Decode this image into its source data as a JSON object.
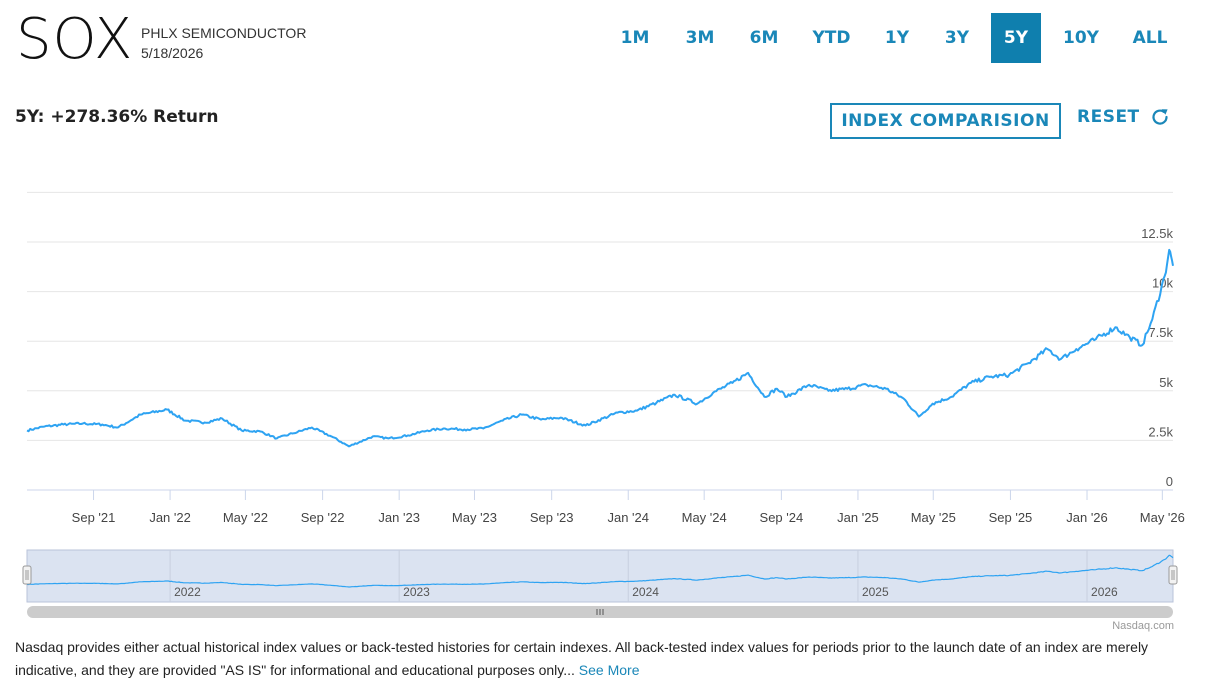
{
  "header": {
    "symbol": "SOX",
    "name": "PHLX SEMICONDUCTOR",
    "date": "5/18/2026"
  },
  "ranges": {
    "items": [
      "1M",
      "3M",
      "6M",
      "YTD",
      "1Y",
      "3Y",
      "5Y",
      "10Y",
      "ALL"
    ],
    "active": "5Y"
  },
  "summary": {
    "return_text": "5Y: +278.36% Return"
  },
  "controls": {
    "compare_label": "INDEX COMPARISION",
    "reset_label": "RESET"
  },
  "colors": {
    "accent": "#1a87b8",
    "line": "#2ea3f2",
    "navigator_fill": "#dbe3f1"
  },
  "chart_data": {
    "type": "line",
    "title": "",
    "xlabel": "",
    "ylabel": "",
    "ylim": [
      0,
      15000
    ],
    "y_ticks": [
      0,
      2500,
      5000,
      7500,
      10000,
      12500
    ],
    "y_tick_labels": [
      "0",
      "2.5k",
      "5k",
      "7.5k",
      "10k",
      "12.5k"
    ],
    "x_tick_labels": [
      "Sep '21",
      "Jan '22",
      "May '22",
      "Sep '22",
      "Jan '23",
      "May '23",
      "Sep '23",
      "Jan '24",
      "May '24",
      "Sep '24",
      "Jan '25",
      "May '25",
      "Sep '25",
      "Jan '26",
      "May '26"
    ],
    "x_tick_dates": [
      "2021-09-01",
      "2022-01-01",
      "2022-05-01",
      "2022-09-01",
      "2023-01-01",
      "2023-05-01",
      "2023-09-01",
      "2024-01-01",
      "2024-05-01",
      "2024-09-01",
      "2025-01-01",
      "2025-05-01",
      "2025-09-01",
      "2026-01-01",
      "2026-05-01"
    ],
    "grid": true,
    "series": [
      {
        "values": [
          [
            "2021-05-18",
            3000
          ],
          [
            "2021-06-15",
            3200
          ],
          [
            "2021-07-15",
            3300
          ],
          [
            "2021-08-15",
            3350
          ],
          [
            "2021-09-15",
            3300
          ],
          [
            "2021-10-10",
            3150
          ],
          [
            "2021-11-15",
            3800
          ],
          [
            "2021-12-27",
            4050
          ],
          [
            "2022-01-25",
            3500
          ],
          [
            "2022-02-25",
            3400
          ],
          [
            "2022-03-25",
            3600
          ],
          [
            "2022-04-25",
            3000
          ],
          [
            "2022-05-25",
            2950
          ],
          [
            "2022-06-20",
            2600
          ],
          [
            "2022-07-15",
            2850
          ],
          [
            "2022-08-15",
            3150
          ],
          [
            "2022-09-15",
            2700
          ],
          [
            "2022-10-13",
            2200
          ],
          [
            "2022-11-20",
            2700
          ],
          [
            "2022-12-15",
            2600
          ],
          [
            "2023-01-15",
            2750
          ],
          [
            "2023-02-15",
            3000
          ],
          [
            "2023-03-15",
            3100
          ],
          [
            "2023-04-15",
            3050
          ],
          [
            "2023-05-15",
            3100
          ],
          [
            "2023-06-15",
            3500
          ],
          [
            "2023-07-15",
            3800
          ],
          [
            "2023-08-15",
            3550
          ],
          [
            "2023-09-15",
            3650
          ],
          [
            "2023-10-25",
            3250
          ],
          [
            "2023-12-15",
            3900
          ],
          [
            "2024-01-15",
            4000
          ],
          [
            "2024-02-15",
            4400
          ],
          [
            "2024-03-15",
            4800
          ],
          [
            "2024-04-20",
            4350
          ],
          [
            "2024-05-15",
            4900
          ],
          [
            "2024-06-15",
            5400
          ],
          [
            "2024-07-10",
            5900
          ],
          [
            "2024-08-05",
            4700
          ],
          [
            "2024-08-25",
            5100
          ],
          [
            "2024-09-10",
            4700
          ],
          [
            "2024-10-15",
            5300
          ],
          [
            "2024-11-15",
            5000
          ],
          [
            "2024-12-15",
            5100
          ],
          [
            "2025-01-15",
            5300
          ],
          [
            "2025-02-15",
            5100
          ],
          [
            "2025-03-15",
            4600
          ],
          [
            "2025-04-08",
            3700
          ],
          [
            "2025-04-30",
            4350
          ],
          [
            "2025-05-30",
            4700
          ],
          [
            "2025-06-30",
            5400
          ],
          [
            "2025-07-30",
            5700
          ],
          [
            "2025-08-30",
            5800
          ],
          [
            "2025-09-30",
            6400
          ],
          [
            "2025-10-30",
            7100
          ],
          [
            "2025-11-20",
            6600
          ],
          [
            "2025-12-15",
            7100
          ],
          [
            "2026-01-15",
            7600
          ],
          [
            "2026-02-15",
            8200
          ],
          [
            "2026-03-10",
            7700
          ],
          [
            "2026-03-30",
            7300
          ],
          [
            "2026-04-15",
            8600
          ],
          [
            "2026-05-05",
            10800
          ],
          [
            "2026-05-12",
            12100
          ],
          [
            "2026-05-18",
            11300
          ]
        ]
      }
    ],
    "navigator": {
      "labels": [
        "2022",
        "2023",
        "2024",
        "2025",
        "2026"
      ],
      "label_dates": [
        "2022-01-01",
        "2023-01-01",
        "2024-01-01",
        "2025-01-01",
        "2026-01-01"
      ]
    }
  },
  "footer": {
    "disclaimer": "Nasdaq provides either actual historical index values or back-tested histories for certain indexes. All back-tested index values for periods prior to the launch date of an index are merely indicative, and they are provided \"AS IS\" for informational and educational purposes only...",
    "see_more": "See More",
    "credits": "Nasdaq.com"
  }
}
